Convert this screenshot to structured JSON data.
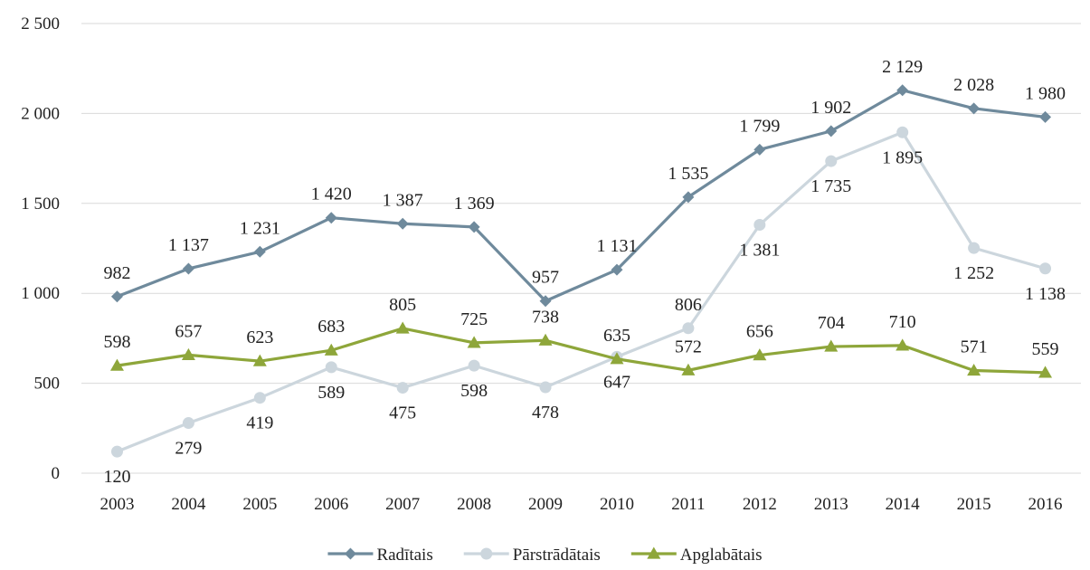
{
  "chart_data": {
    "type": "line",
    "title": "",
    "xlabel": "",
    "ylabel": "",
    "categories": [
      "2003",
      "2004",
      "2005",
      "2006",
      "2007",
      "2008",
      "2009",
      "2010",
      "2011",
      "2012",
      "2013",
      "2014",
      "2015",
      "2016"
    ],
    "ylim": [
      0,
      2500
    ],
    "yticks": [
      0,
      500,
      1000,
      1500,
      2000,
      2500
    ],
    "ytick_labels": [
      "0",
      "500",
      "1 000",
      "1 500",
      "2 000",
      "2 500"
    ],
    "grid": true,
    "legend_position": "bottom",
    "series": [
      {
        "name": "Radītais",
        "color": "#6f8a9c",
        "marker": "diamond",
        "values": [
          982,
          1137,
          1231,
          1420,
          1387,
          1369,
          957,
          1131,
          1535,
          1799,
          1902,
          2129,
          2028,
          1980
        ],
        "labels": [
          "982",
          "1 137",
          "1 231",
          "1 420",
          "1 387",
          "1 369",
          "957",
          "1 131",
          "1 535",
          "1 799",
          "1 902",
          "2 129",
          "2 028",
          "1 980"
        ],
        "label_pos": [
          "above",
          "above",
          "above",
          "above",
          "above",
          "above",
          "above",
          "above",
          "above",
          "above",
          "above",
          "above",
          "above",
          "above"
        ]
      },
      {
        "name": "Pārstrādātais",
        "color": "#ccd6dd",
        "marker": "circle",
        "values": [
          120,
          279,
          419,
          589,
          475,
          598,
          478,
          647,
          806,
          1381,
          1735,
          1895,
          1252,
          1138
        ],
        "labels": [
          "120",
          "279",
          "419",
          "589",
          "475",
          "598",
          "478",
          "647",
          "806",
          "1 381",
          "1 735",
          "1 895",
          "1 252",
          "1 138"
        ],
        "label_pos": [
          "below",
          "below",
          "below",
          "below",
          "below",
          "below",
          "below",
          "below",
          "above",
          "below",
          "below",
          "below",
          "below",
          "below"
        ]
      },
      {
        "name": "Apglabātais",
        "color": "#8ea63a",
        "marker": "triangle",
        "values": [
          598,
          657,
          623,
          683,
          805,
          725,
          738,
          635,
          572,
          656,
          704,
          710,
          571,
          559
        ],
        "labels": [
          "598",
          "657",
          "623",
          "683",
          "805",
          "725",
          "738",
          "635",
          "572",
          "656",
          "704",
          "710",
          "571",
          "559"
        ],
        "label_pos": [
          "above",
          "above",
          "above",
          "above",
          "above",
          "above",
          "above",
          "above",
          "above",
          "above",
          "above",
          "above",
          "above",
          "above"
        ]
      }
    ]
  }
}
